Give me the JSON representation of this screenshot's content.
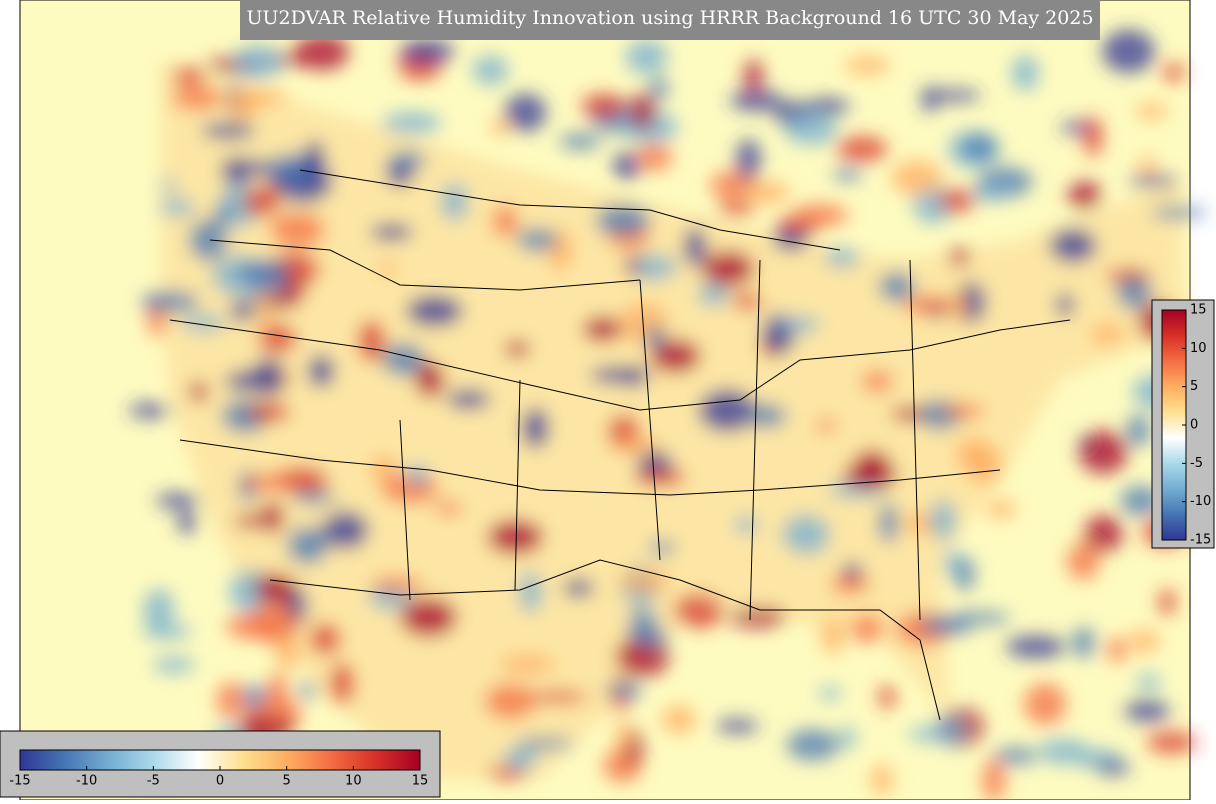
{
  "title": "UU2DVAR Relative Humidity Innovation using HRRR Background 16 UTC 30 May 2025",
  "colorbar_bottom": {
    "lim": [
      -15,
      15
    ],
    "ticks": [
      -15,
      -10,
      -5,
      0,
      5,
      10,
      15
    ],
    "colors": [
      "#313695",
      "#4575b4",
      "#74add1",
      "#abd9e9",
      "#ffffff",
      "#fee090",
      "#fdae61",
      "#f46d43",
      "#d73027",
      "#a50026"
    ]
  },
  "colorbar_right": {
    "lim": [
      -15,
      15
    ],
    "ticks": [
      -15,
      -10,
      -5,
      0,
      5,
      10,
      15
    ],
    "colors": [
      "#313695",
      "#4575b4",
      "#74add1",
      "#abd9e9",
      "#ffffff",
      "#fee090",
      "#fdae61",
      "#f46d43",
      "#d73027",
      "#a50026"
    ]
  }
}
